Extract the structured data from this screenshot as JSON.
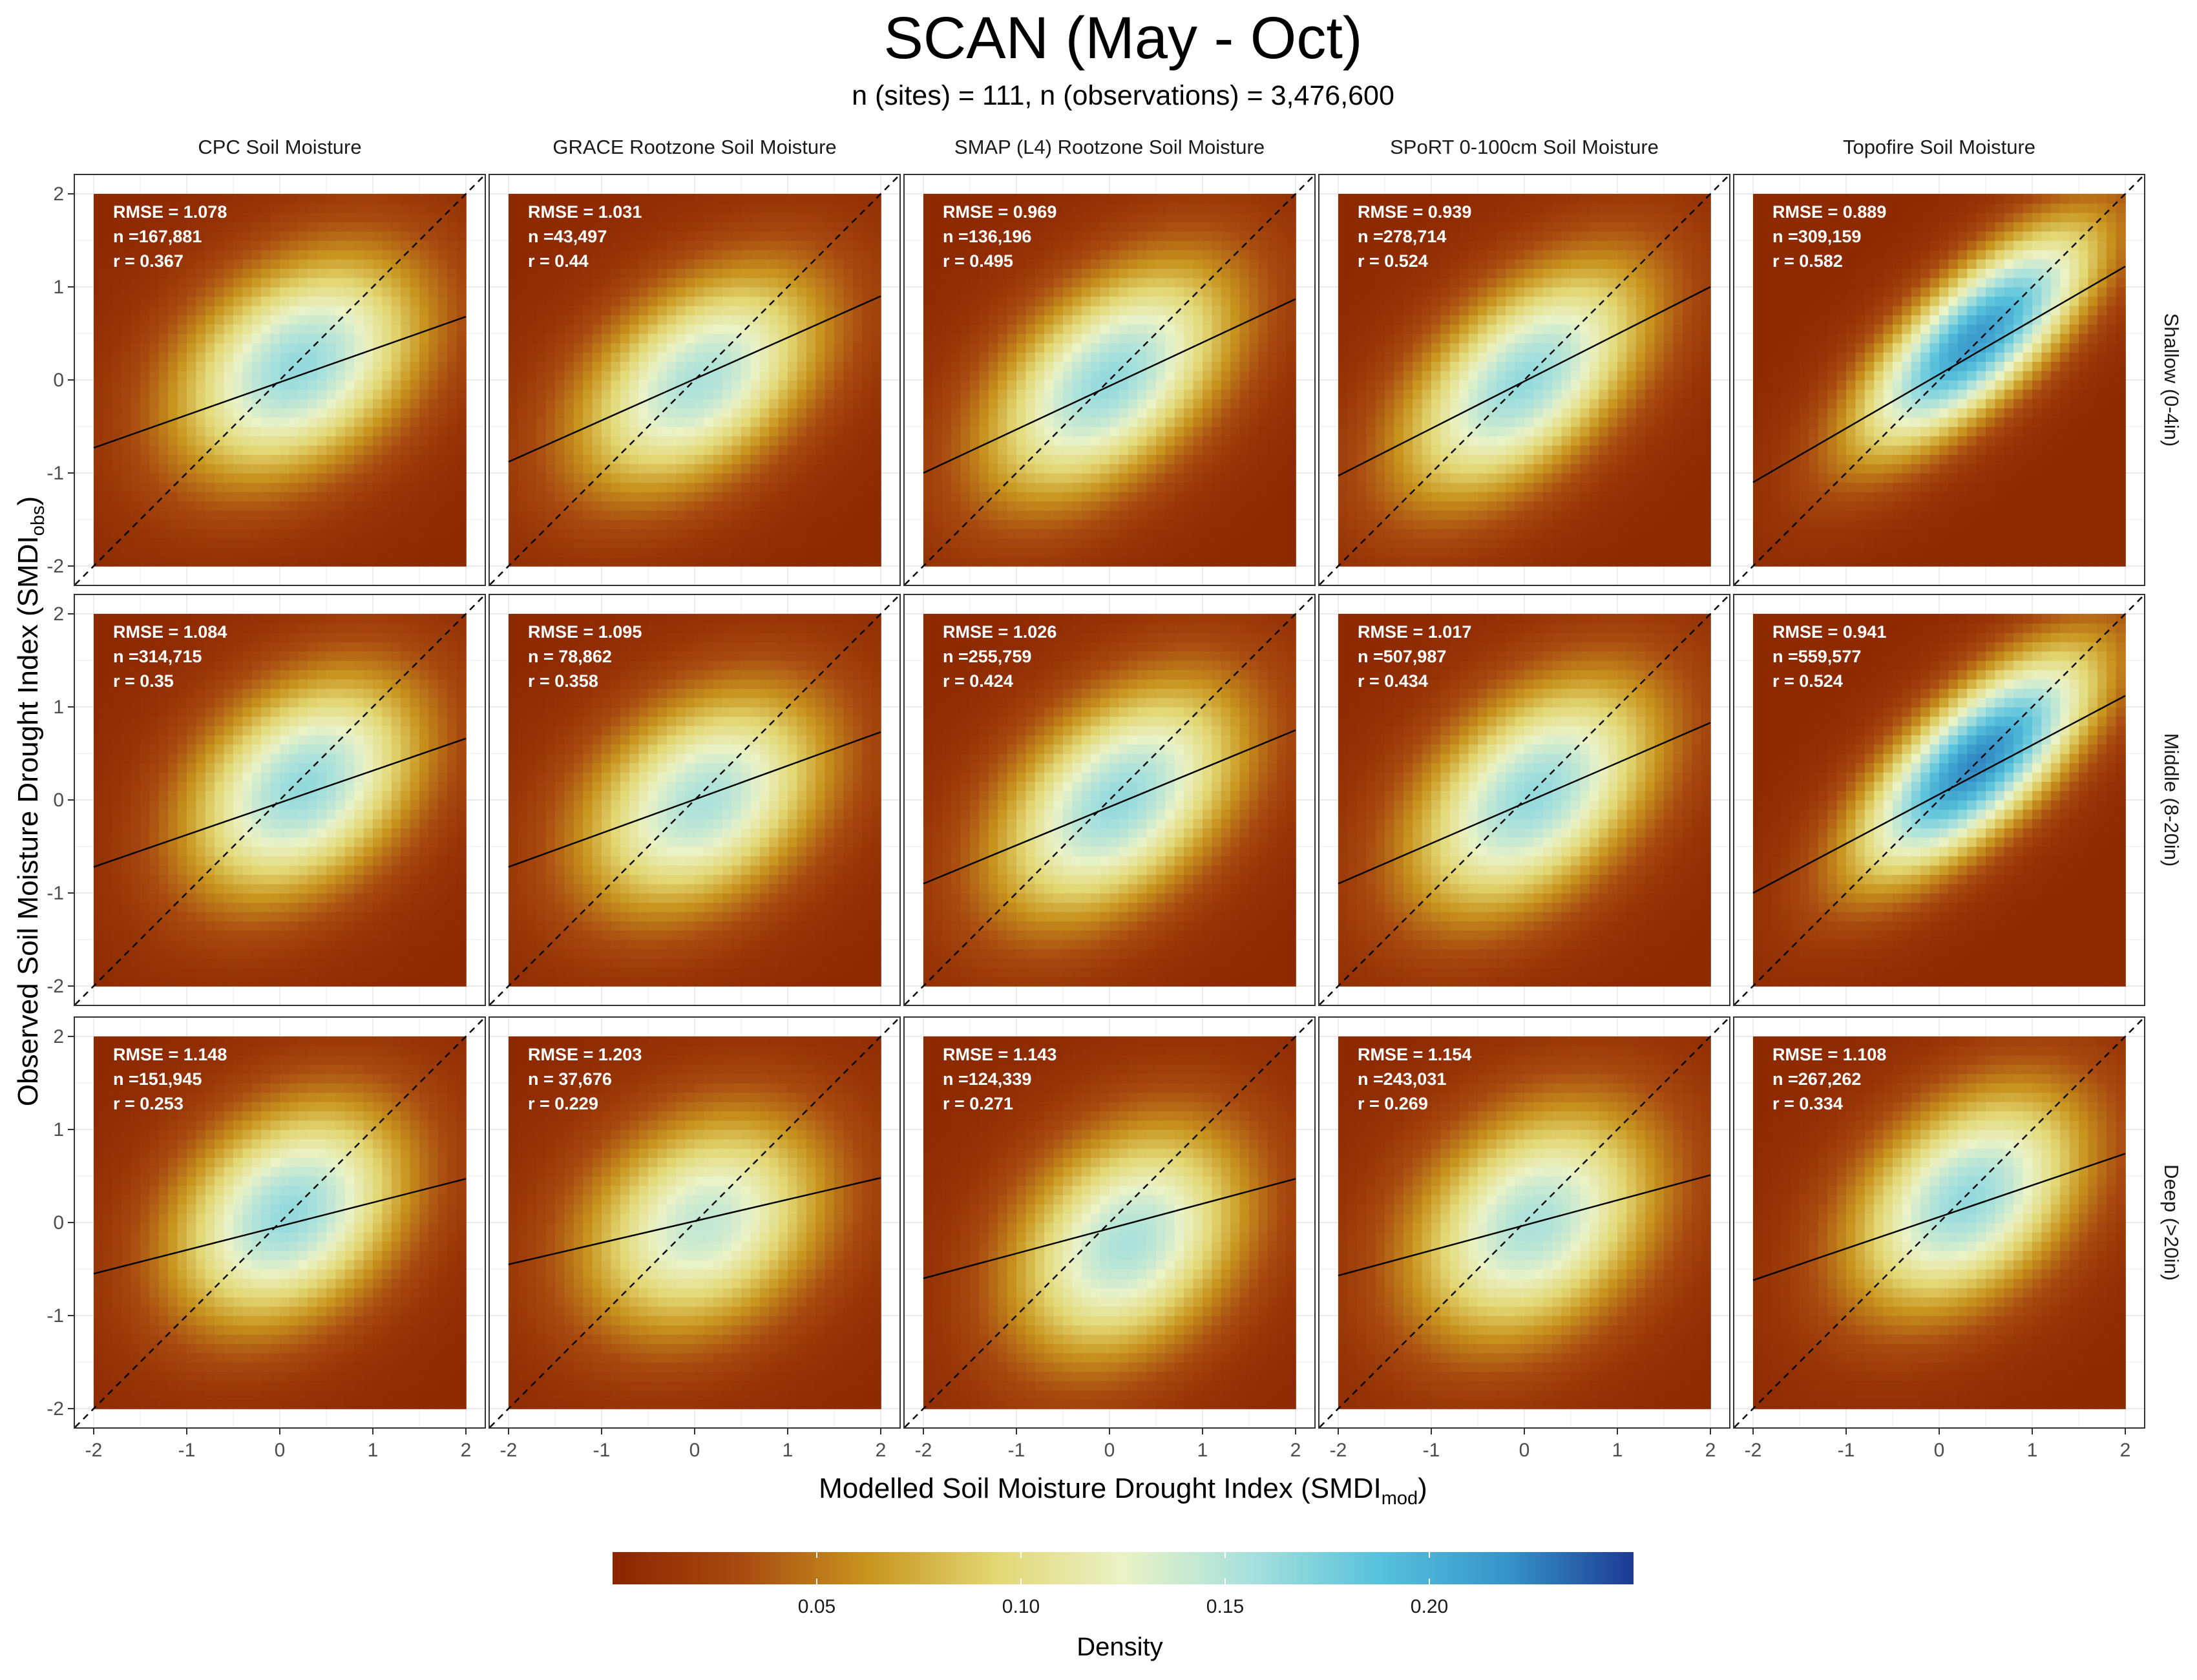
{
  "title": "SCAN (May - Oct)",
  "subtitle": "n (sites) = 111, n (observations) = 3,476,600",
  "colors": {
    "density_scale": [
      "#8a2500",
      "#a84a10",
      "#c8941e",
      "#e2d773",
      "#eaf2c6",
      "#a7e0dc",
      "#58c2dc",
      "#3695c9",
      "#1d3a94"
    ],
    "regression_line": "#000000",
    "identity_line": "#000000"
  },
  "chart_data": {
    "type": "heatmap",
    "xlabel": "Modelled Soil Moisture Drought Index",
    "xlabel_paren": "SMDI",
    "xlabel_sub": "mod",
    "ylabel": "Observed Soil Moisture Drought Index",
    "ylabel_paren": "SMDI",
    "ylabel_sub": "obs",
    "xlim": [
      -2,
      2
    ],
    "ylim": [
      -2,
      2
    ],
    "x_ticks": [
      "-2",
      "-1",
      "0",
      "1",
      "2"
    ],
    "y_ticks": [
      "-2",
      "-1",
      "0",
      "1",
      "2"
    ],
    "grid": true,
    "columns": [
      "CPC Soil Moisture",
      "GRACE Rootzone Soil Moisture",
      "SMAP (L4) Rootzone Soil Moisture",
      "SPoRT 0-100cm Soil Moisture",
      "Topofire Soil Moisture"
    ],
    "rows": [
      "Shallow (0-4in)",
      "Middle (8-20in)",
      "Deep (>20in)"
    ],
    "panels": [
      [
        {
          "rmse": "RMSE = 1.078",
          "n": "n =167,881",
          "r": "r = 0.367",
          "line": [
            -0.73,
            0.68
          ],
          "density": {
            "cx": 0.2,
            "cy": 0.15,
            "sx": 0.95,
            "sy": 0.85,
            "rho": 0.35,
            "peak": 0.16
          }
        },
        {
          "rmse": "RMSE = 1.031",
          "n": "n =43,497",
          "r": "r = 0.44",
          "line": [
            -0.88,
            0.9
          ],
          "density": {
            "cx": 0.05,
            "cy": 0.0,
            "sx": 0.95,
            "sy": 0.85,
            "rho": 0.45,
            "peak": 0.15
          }
        },
        {
          "rmse": "RMSE = 0.969",
          "n": "n =136,196",
          "r": "r = 0.495",
          "line": [
            -1.0,
            0.87
          ],
          "density": {
            "cx": 0.0,
            "cy": 0.0,
            "sx": 0.95,
            "sy": 0.9,
            "rho": 0.5,
            "peak": 0.16
          }
        },
        {
          "rmse": "RMSE = 0.939",
          "n": "n =278,714",
          "r": "r = 0.524",
          "line": [
            -1.03,
            1.0
          ],
          "density": {
            "cx": 0.0,
            "cy": 0.0,
            "sx": 0.95,
            "sy": 0.9,
            "rho": 0.55,
            "peak": 0.16
          }
        },
        {
          "rmse": "RMSE = 0.889",
          "n": "n =309,159",
          "r": "r = 0.582",
          "line": [
            -1.1,
            1.22
          ],
          "density": {
            "cx": 0.4,
            "cy": 0.45,
            "sx": 0.9,
            "sy": 0.85,
            "rho": 0.75,
            "peak": 0.21
          }
        }
      ],
      [
        {
          "rmse": "RMSE = 1.084",
          "n": "n =314,715",
          "r": "r = 0.35",
          "line": [
            -0.72,
            0.66
          ],
          "density": {
            "cx": 0.25,
            "cy": 0.15,
            "sx": 0.9,
            "sy": 0.85,
            "rho": 0.35,
            "peak": 0.16
          }
        },
        {
          "rmse": "RMSE = 1.095",
          "n": "n = 78,862",
          "r": "r = 0.358",
          "line": [
            -0.72,
            0.73
          ],
          "density": {
            "cx": 0.1,
            "cy": 0.0,
            "sx": 0.95,
            "sy": 0.85,
            "rho": 0.35,
            "peak": 0.15
          }
        },
        {
          "rmse": "RMSE = 1.026",
          "n": "n =255,759",
          "r": "r = 0.424",
          "line": [
            -0.9,
            0.75
          ],
          "density": {
            "cx": 0.1,
            "cy": 0.0,
            "sx": 0.95,
            "sy": 0.9,
            "rho": 0.45,
            "peak": 0.16
          }
        },
        {
          "rmse": "RMSE = 1.017",
          "n": "n =507,987",
          "r": "r = 0.434",
          "line": [
            -0.9,
            0.83
          ],
          "density": {
            "cx": 0.1,
            "cy": 0.05,
            "sx": 0.95,
            "sy": 0.9,
            "rho": 0.45,
            "peak": 0.16
          }
        },
        {
          "rmse": "RMSE = 0.941",
          "n": "n =559,577",
          "r": "r = 0.524",
          "line": [
            -1.0,
            1.12
          ],
          "density": {
            "cx": 0.4,
            "cy": 0.4,
            "sx": 0.9,
            "sy": 0.85,
            "rho": 0.72,
            "peak": 0.22
          }
        }
      ],
      [
        {
          "rmse": "RMSE = 1.148",
          "n": "n =151,945",
          "r": "r = 0.253",
          "line": [
            -0.55,
            0.47
          ],
          "density": {
            "cx": 0.1,
            "cy": 0.1,
            "sx": 0.9,
            "sy": 0.85,
            "rho": 0.3,
            "peak": 0.16
          }
        },
        {
          "rmse": "RMSE = 1.203",
          "n": "n = 37,676",
          "r": "r = 0.229",
          "line": [
            -0.45,
            0.48
          ],
          "density": {
            "cx": 0.1,
            "cy": 0.0,
            "sx": 0.95,
            "sy": 0.85,
            "rho": 0.25,
            "peak": 0.14
          }
        },
        {
          "rmse": "RMSE = 1.143",
          "n": "n =124,339",
          "r": "r = 0.271",
          "line": [
            -0.6,
            0.47
          ],
          "density": {
            "cx": 0.2,
            "cy": -0.2,
            "sx": 0.9,
            "sy": 0.9,
            "rho": 0.3,
            "peak": 0.15
          }
        },
        {
          "rmse": "RMSE = 1.154",
          "n": "n =243,031",
          "r": "r = 0.269",
          "line": [
            -0.57,
            0.51
          ],
          "density": {
            "cx": 0.1,
            "cy": 0.0,
            "sx": 0.95,
            "sy": 0.9,
            "rho": 0.3,
            "peak": 0.15
          }
        },
        {
          "rmse": "RMSE = 1.108",
          "n": "n =267,262",
          "r": "r = 0.334",
          "line": [
            -0.62,
            0.74
          ],
          "density": {
            "cx": 0.3,
            "cy": 0.25,
            "sx": 0.9,
            "sy": 0.85,
            "rho": 0.4,
            "peak": 0.16
          }
        }
      ]
    ],
    "legend": {
      "title": "Density",
      "range": [
        0.0,
        0.25
      ],
      "ticks": [
        "0.05",
        "0.10",
        "0.15",
        "0.20"
      ],
      "tick_values": [
        0.05,
        0.1,
        0.15,
        0.2
      ],
      "placement": "bottom"
    }
  }
}
